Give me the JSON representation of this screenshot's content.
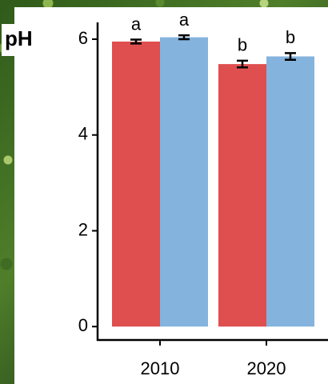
{
  "chart_data": {
    "type": "bar",
    "title": "pH",
    "categories": [
      "2010",
      "2020"
    ],
    "series": [
      {
        "color": "#df4f4f",
        "values": [
          5.95,
          5.48
        ],
        "errors": [
          0.04,
          0.07
        ],
        "letters": [
          "a",
          "b"
        ]
      },
      {
        "color": "#84b3dd",
        "values": [
          6.04,
          5.64
        ],
        "errors": [
          0.04,
          0.07
        ],
        "letters": [
          "a",
          "b"
        ]
      }
    ],
    "ylim": [
      -0.28,
      6.35
    ],
    "yticks": [
      0,
      2,
      4,
      6
    ],
    "grid": false
  }
}
